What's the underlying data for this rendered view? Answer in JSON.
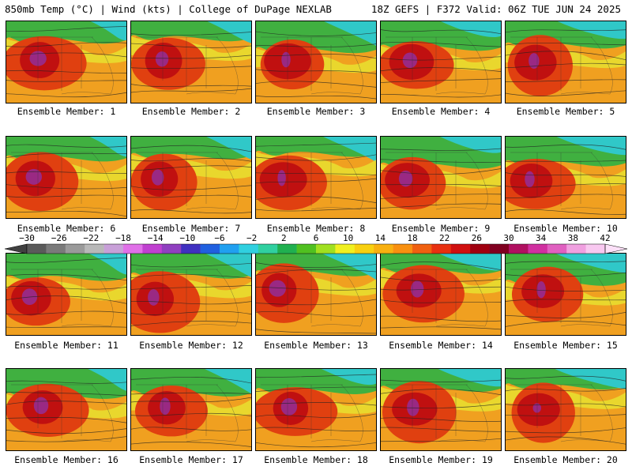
{
  "header": {
    "left_title": "850mb Temp (°C) | Wind (kts) | College of DuPage NEXLAB",
    "right_title": "18Z GEFS | F372 Valid: 06Z TUE JUN 24 2025"
  },
  "member_labels": [
    "Ensemble Member: 1",
    "Ensemble Member: 2",
    "Ensemble Member: 3",
    "Ensemble Member: 4",
    "Ensemble Member: 5",
    "Ensemble Member: 6",
    "Ensemble Member: 7",
    "Ensemble Member: 8",
    "Ensemble Member: 9",
    "Ensemble Member: 10",
    "Ensemble Member: 11",
    "Ensemble Member: 12",
    "Ensemble Member: 13",
    "Ensemble Member: 14",
    "Ensemble Member: 15",
    "Ensemble Member: 16",
    "Ensemble Member: 17",
    "Ensemble Member: 18",
    "Ensemble Member: 19",
    "Ensemble Member: 20"
  ],
  "colorbar": {
    "tick_labels": [
      "−30",
      "−26",
      "−22",
      "−18",
      "−14",
      "−10",
      "−6",
      "−2",
      "2",
      "6",
      "10",
      "14",
      "18",
      "22",
      "26",
      "30",
      "34",
      "38",
      "42"
    ],
    "colors": [
      "#5a5a5a",
      "#7a7a7a",
      "#9a9a9a",
      "#b8b8b8",
      "#c8a0d8",
      "#e070e8",
      "#c040d0",
      "#9040c0",
      "#4030c0",
      "#2060e0",
      "#20a0f0",
      "#30d0e0",
      "#30d0a0",
      "#20b050",
      "#50c020",
      "#a0e020",
      "#f0f020",
      "#f8d010",
      "#f8b010",
      "#f89010",
      "#f06010",
      "#e83010",
      "#d01010",
      "#a00010",
      "#800020",
      "#b01060",
      "#d030a0",
      "#e060c0",
      "#f0a0e0",
      "#f8c8f0"
    ],
    "palette": {
      "cool": "#30c8c8",
      "green": "#40b040",
      "yellow": "#e8e030",
      "orange": "#f0a020",
      "red": "#e04010",
      "darkred": "#c01010",
      "purple": "#9030a0"
    }
  }
}
